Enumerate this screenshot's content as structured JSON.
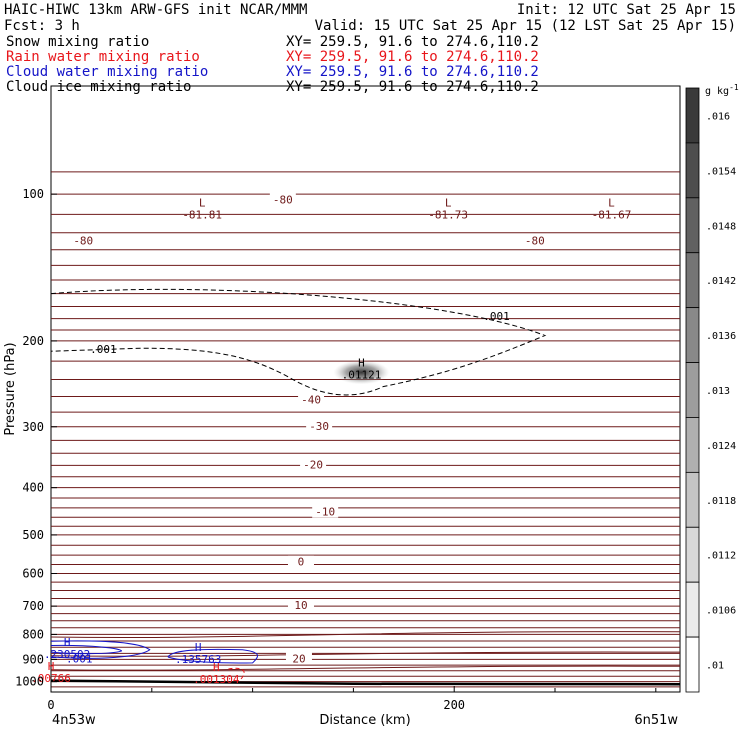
{
  "header": {
    "line1_left": "HAIC-HIWC 13km ARW-GFS init   NCAR/MMM",
    "line1_right": "Init: 12 UTC Sat 25 Apr 15",
    "line2_left": "Fcst:     3 h",
    "line2_right": "Valid: 15 UTC Sat 25 Apr 15 (12 LST Sat 25 Apr 15)",
    "fields": [
      {
        "name": "Snow mixing ratio",
        "xy": "XY= 259.5, 91.6 to 274.6,110.2",
        "color": "#000000"
      },
      {
        "name": "Rain water mixing ratio",
        "xy": "XY= 259.5, 91.6 to 274.6,110.2",
        "color": "#e8161b"
      },
      {
        "name": "Cloud water mixing ratio",
        "xy": "XY= 259.5, 91.6 to 274.6,110.2",
        "color": "#1414c8"
      },
      {
        "name": "Cloud ice mixing ratio",
        "xy": "XY= 259.5, 91.6 to 274.6,110.2",
        "color": "#000000"
      }
    ]
  },
  "chart_data": {
    "type": "cross-section contour",
    "xlabel": "Distance (km)",
    "ylabel": "Pressure (hPa)",
    "xlim": [
      0,
      312
    ],
    "ylim": [
      1050,
      60
    ],
    "y_log_scale": true,
    "x_ticks": [
      0,
      200
    ],
    "y_ticks": [
      100,
      200,
      300,
      400,
      500,
      600,
      700,
      800,
      900,
      1000
    ],
    "x_end_labels": [
      "4n53w",
      "6n51w"
    ],
    "colorbar": {
      "unit": "g kg",
      "unit_exp": "-1",
      "labels": [
        ".016",
        ".0154",
        ".0148",
        ".0142",
        ".0136",
        ".013",
        ".0124",
        ".0118",
        ".0112",
        ".0106",
        ".01"
      ],
      "color_top": "#3a3a3a",
      "color_bottom": "#ffffff"
    },
    "temperature_contour_labels": [
      "-80",
      "-80",
      "-80",
      "-40",
      "-30",
      "-20",
      "-10",
      "0",
      "10",
      "20"
    ],
    "extrema": [
      {
        "kind": "L",
        "value": "-81.81",
        "x": 75,
        "p": 108,
        "color": "#6e1a1a"
      },
      {
        "kind": "L",
        "value": "-81.73",
        "x": 197,
        "p": 108,
        "color": "#6e1a1a"
      },
      {
        "kind": "L",
        "value": "-81.67",
        "x": 278,
        "p": 108,
        "color": "#6e1a1a"
      },
      {
        "kind": "H",
        "value": ".01121",
        "x": 154,
        "p": 230,
        "color": "#000000"
      },
      {
        "kind": "H",
        "value": ".230502",
        "x": 8,
        "p": 862,
        "color": "#1414c8"
      },
      {
        "kind": "H",
        "value": ".135763",
        "x": 73,
        "p": 882,
        "color": "#1414c8"
      },
      {
        "kind": "H",
        "value": ".001304",
        "x": 82,
        "p": 970,
        "color": "#e8161b"
      },
      {
        "kind": "H",
        "value": ".00766",
        "x": 0,
        "p": 965,
        "color": "#e8161b"
      }
    ],
    "ice_contour_labels": [
      ".001",
      ".001"
    ],
    "cloud_water_contour_labels": [
      ".001"
    ],
    "colors": {
      "isotherm": "#6e1a1a",
      "ground": "#000000",
      "cloud_water": "#1414c8",
      "rain": "#e8161b"
    }
  }
}
